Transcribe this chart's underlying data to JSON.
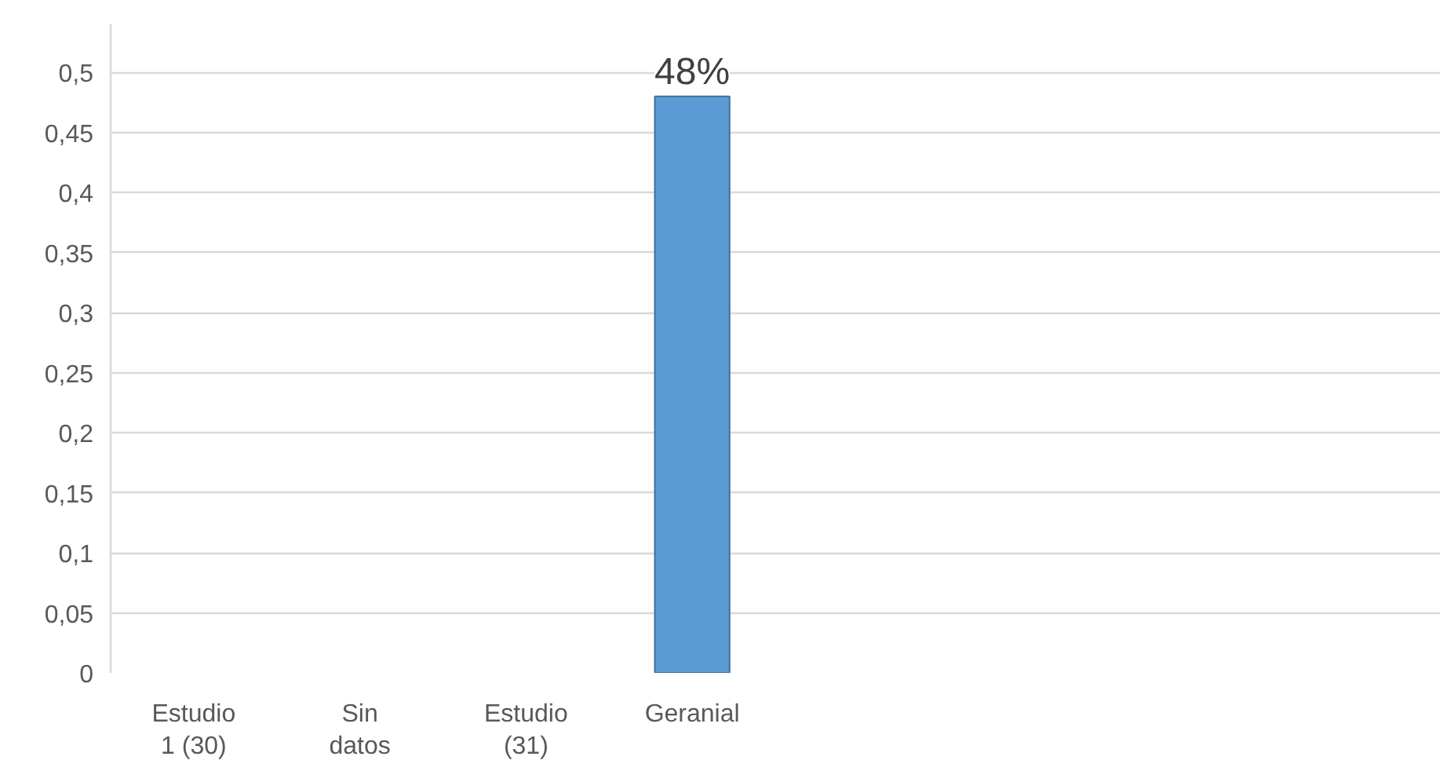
{
  "chart_data": {
    "type": "bar",
    "categories": [
      "Estudio 1 (30)",
      "Sin datos",
      "Estudio (31)",
      "Geranial",
      null,
      null,
      null,
      null
    ],
    "values": [
      null,
      null,
      null,
      0.48,
      null,
      null,
      null,
      null
    ],
    "value_labels": [
      null,
      null,
      null,
      "48%",
      null,
      null,
      null,
      null
    ],
    "color": "#5b9bd5",
    "ylim": [
      0,
      0.54
    ],
    "yticks": [
      0,
      {
        "value": 0.05,
        "label": "0,05"
      },
      {
        "value": 0.1,
        "label": "0,1"
      },
      {
        "value": 0.15,
        "label": "0,15"
      },
      {
        "value": 0.2,
        "label": "0,2"
      },
      {
        "value": 0.25,
        "label": "0,25"
      },
      {
        "value": 0.3,
        "label": "0,3"
      },
      {
        "value": 0.35,
        "label": "0,35"
      },
      {
        "value": 0.4,
        "label": "0,4"
      },
      {
        "value": 0.45,
        "label": "0,45"
      },
      {
        "value": 0.5,
        "label": "0,5"
      }
    ],
    "grid": "y"
  }
}
